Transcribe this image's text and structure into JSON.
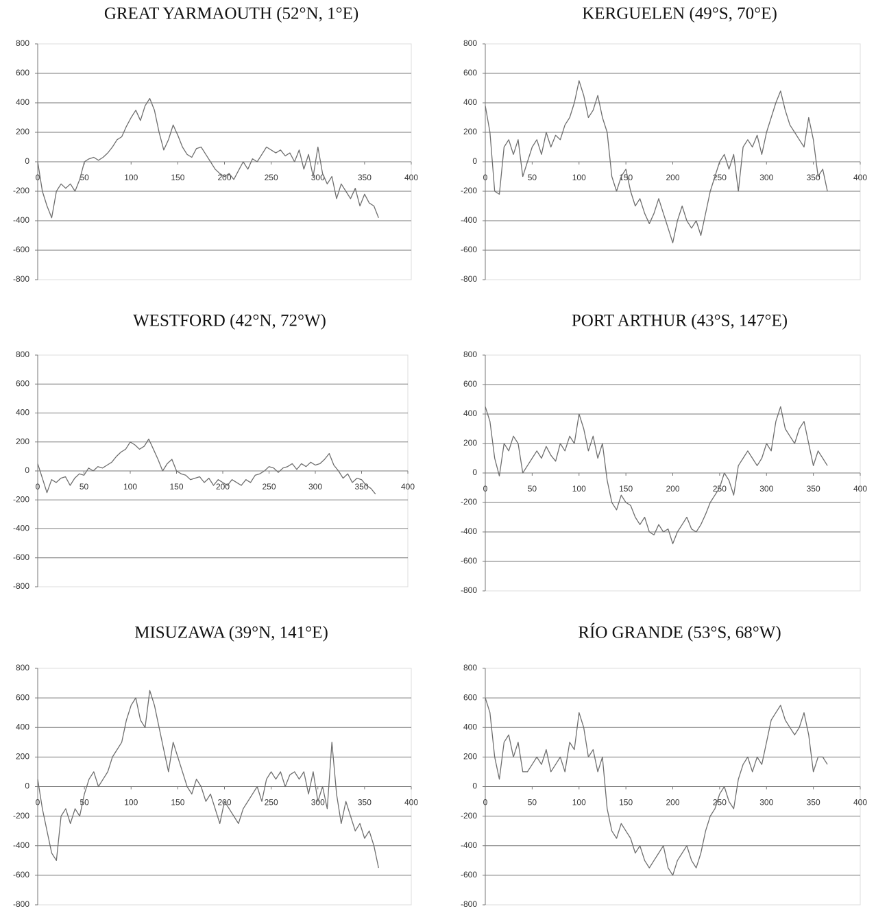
{
  "chart_data": [
    {
      "type": "line",
      "title": "GREAT YARMAOUTH (52°N, 1°E)",
      "color": "#6e6e6e",
      "grid": true,
      "xlim": [
        0,
        400
      ],
      "xticks": [
        0,
        50,
        100,
        150,
        200,
        250,
        300,
        350,
        400
      ],
      "ylim": [
        -800,
        800
      ],
      "yticks": [
        -800,
        -600,
        -400,
        -200,
        0,
        200,
        400,
        600,
        800
      ],
      "x": [
        0,
        5,
        10,
        15,
        20,
        25,
        30,
        35,
        40,
        45,
        50,
        55,
        60,
        65,
        70,
        75,
        80,
        85,
        90,
        95,
        100,
        105,
        110,
        115,
        120,
        125,
        130,
        135,
        140,
        145,
        150,
        155,
        160,
        165,
        170,
        175,
        180,
        185,
        190,
        195,
        200,
        205,
        210,
        215,
        220,
        225,
        230,
        235,
        240,
        245,
        250,
        255,
        260,
        265,
        270,
        275,
        280,
        285,
        290,
        295,
        300,
        305,
        310,
        315,
        320,
        325,
        330,
        335,
        340,
        345,
        350,
        355,
        360,
        365
      ],
      "values": [
        0,
        -200,
        -300,
        -380,
        -200,
        -150,
        -180,
        -150,
        -200,
        -120,
        0,
        20,
        30,
        10,
        30,
        60,
        100,
        150,
        170,
        240,
        300,
        350,
        280,
        380,
        430,
        350,
        200,
        80,
        150,
        250,
        180,
        100,
        50,
        30,
        90,
        100,
        50,
        0,
        -50,
        -80,
        -100,
        -80,
        -120,
        -60,
        0,
        -50,
        20,
        0,
        50,
        100,
        80,
        60,
        80,
        40,
        60,
        0,
        80,
        -50,
        50,
        -100,
        100,
        -80,
        -150,
        -100,
        -250,
        -150,
        -200,
        -250,
        -180,
        -300,
        -220,
        -280,
        -300,
        -380
      ]
    },
    {
      "type": "line",
      "title": "KERGUELEN (49°S, 70°E)",
      "color": "#6e6e6e",
      "grid": true,
      "xlim": [
        0,
        400
      ],
      "xticks": [
        0,
        50,
        100,
        150,
        200,
        250,
        300,
        350,
        400
      ],
      "ylim": [
        -800,
        800
      ],
      "yticks": [
        -800,
        -600,
        -400,
        -200,
        0,
        200,
        400,
        600,
        800
      ],
      "x": [
        0,
        5,
        10,
        15,
        20,
        25,
        30,
        35,
        40,
        45,
        50,
        55,
        60,
        65,
        70,
        75,
        80,
        85,
        90,
        95,
        100,
        105,
        110,
        115,
        120,
        125,
        130,
        135,
        140,
        145,
        150,
        155,
        160,
        165,
        170,
        175,
        180,
        185,
        190,
        195,
        200,
        205,
        210,
        215,
        220,
        225,
        230,
        235,
        240,
        245,
        250,
        255,
        260,
        265,
        270,
        275,
        280,
        285,
        290,
        295,
        300,
        305,
        310,
        315,
        320,
        325,
        330,
        335,
        340,
        345,
        350,
        355,
        360,
        365
      ],
      "values": [
        380,
        200,
        -200,
        -220,
        100,
        150,
        50,
        150,
        -100,
        0,
        100,
        150,
        50,
        200,
        100,
        180,
        150,
        250,
        300,
        400,
        550,
        450,
        300,
        350,
        450,
        300,
        200,
        -100,
        -200,
        -100,
        -50,
        -200,
        -300,
        -250,
        -350,
        -420,
        -350,
        -250,
        -350,
        -450,
        -550,
        -400,
        -300,
        -400,
        -450,
        -400,
        -500,
        -350,
        -200,
        -100,
        0,
        50,
        -50,
        50,
        -200,
        100,
        150,
        100,
        180,
        50,
        200,
        300,
        400,
        480,
        350,
        250,
        200,
        150,
        100,
        300,
        150,
        -100,
        -50,
        -200
      ]
    },
    {
      "type": "line",
      "title": "WESTFORD (42°N, 72°W)",
      "color": "#6e6e6e",
      "grid": true,
      "xlim": [
        0,
        400
      ],
      "xticks": [
        0,
        50,
        100,
        150,
        200,
        250,
        300,
        350,
        400
      ],
      "ylim": [
        -800,
        800
      ],
      "yticks": [
        -800,
        -600,
        -400,
        -200,
        0,
        200,
        400,
        600,
        800
      ],
      "x": [
        0,
        5,
        10,
        15,
        20,
        25,
        30,
        35,
        40,
        45,
        50,
        55,
        60,
        65,
        70,
        75,
        80,
        85,
        90,
        95,
        100,
        105,
        110,
        115,
        120,
        125,
        130,
        135,
        140,
        145,
        150,
        155,
        160,
        165,
        170,
        175,
        180,
        185,
        190,
        195,
        200,
        205,
        210,
        215,
        220,
        225,
        230,
        235,
        240,
        245,
        250,
        255,
        260,
        265,
        270,
        275,
        280,
        285,
        290,
        295,
        300,
        305,
        310,
        315,
        320,
        325,
        330,
        335,
        340,
        345,
        350,
        355,
        360,
        365
      ],
      "values": [
        50,
        -50,
        -150,
        -60,
        -80,
        -50,
        -40,
        -100,
        -50,
        -20,
        -30,
        20,
        0,
        30,
        20,
        40,
        60,
        100,
        130,
        150,
        200,
        180,
        150,
        170,
        220,
        150,
        80,
        0,
        50,
        80,
        0,
        -20,
        -30,
        -60,
        -50,
        -40,
        -80,
        -50,
        -100,
        -60,
        -80,
        -100,
        -60,
        -80,
        -100,
        -60,
        -80,
        -30,
        -20,
        0,
        30,
        20,
        -10,
        20,
        30,
        50,
        10,
        50,
        30,
        60,
        40,
        50,
        80,
        120,
        40,
        0,
        -50,
        -20,
        -80,
        -50,
        -60,
        -100,
        -120,
        -160
      ]
    },
    {
      "type": "line",
      "title": "PORT ARTHUR (43°S, 147°E)",
      "color": "#6e6e6e",
      "grid": true,
      "xlim": [
        0,
        400
      ],
      "xticks": [
        0,
        50,
        100,
        150,
        200,
        250,
        300,
        350,
        400
      ],
      "ylim": [
        -800,
        800
      ],
      "yticks": [
        -800,
        -600,
        -400,
        -200,
        0,
        200,
        400,
        600,
        800
      ],
      "x": [
        0,
        5,
        10,
        15,
        20,
        25,
        30,
        35,
        40,
        45,
        50,
        55,
        60,
        65,
        70,
        75,
        80,
        85,
        90,
        95,
        100,
        105,
        110,
        115,
        120,
        125,
        130,
        135,
        140,
        145,
        150,
        155,
        160,
        165,
        170,
        175,
        180,
        185,
        190,
        195,
        200,
        205,
        210,
        215,
        220,
        225,
        230,
        235,
        240,
        245,
        250,
        255,
        260,
        265,
        270,
        275,
        280,
        285,
        290,
        295,
        300,
        305,
        310,
        315,
        320,
        325,
        330,
        335,
        340,
        345,
        350,
        355,
        360,
        365
      ],
      "values": [
        450,
        350,
        100,
        -20,
        200,
        150,
        250,
        200,
        0,
        50,
        100,
        150,
        100,
        180,
        120,
        80,
        200,
        150,
        250,
        200,
        400,
        300,
        150,
        250,
        100,
        200,
        -50,
        -200,
        -250,
        -150,
        -200,
        -220,
        -300,
        -350,
        -300,
        -400,
        -420,
        -350,
        -400,
        -380,
        -480,
        -400,
        -350,
        -300,
        -380,
        -400,
        -350,
        -280,
        -200,
        -150,
        -100,
        0,
        -50,
        -150,
        50,
        100,
        150,
        100,
        50,
        100,
        200,
        150,
        350,
        450,
        300,
        250,
        200,
        300,
        350,
        200,
        50,
        150,
        100,
        50
      ]
    },
    {
      "type": "line",
      "title": "MISUZAWA (39°N, 141°E)",
      "color": "#6e6e6e",
      "grid": true,
      "xlim": [
        0,
        400
      ],
      "xticks": [
        0,
        50,
        100,
        150,
        200,
        250,
        300,
        350,
        400
      ],
      "ylim": [
        -800,
        800
      ],
      "yticks": [
        -800,
        -600,
        -400,
        -200,
        0,
        200,
        400,
        600,
        800
      ],
      "x": [
        0,
        5,
        10,
        15,
        20,
        25,
        30,
        35,
        40,
        45,
        50,
        55,
        60,
        65,
        70,
        75,
        80,
        85,
        90,
        95,
        100,
        105,
        110,
        115,
        120,
        125,
        130,
        135,
        140,
        145,
        150,
        155,
        160,
        165,
        170,
        175,
        180,
        185,
        190,
        195,
        200,
        205,
        210,
        215,
        220,
        225,
        230,
        235,
        240,
        245,
        250,
        255,
        260,
        265,
        270,
        275,
        280,
        285,
        290,
        295,
        300,
        305,
        310,
        315,
        320,
        325,
        330,
        335,
        340,
        345,
        350,
        355,
        360,
        365
      ],
      "values": [
        50,
        -150,
        -300,
        -450,
        -500,
        -200,
        -150,
        -250,
        -150,
        -200,
        -50,
        50,
        100,
        0,
        50,
        100,
        200,
        250,
        300,
        450,
        550,
        600,
        450,
        400,
        650,
        550,
        400,
        250,
        100,
        300,
        200,
        100,
        0,
        -50,
        50,
        0,
        -100,
        -50,
        -150,
        -250,
        -100,
        -150,
        -200,
        -250,
        -150,
        -100,
        -50,
        0,
        -100,
        50,
        100,
        50,
        100,
        0,
        80,
        100,
        50,
        100,
        -50,
        100,
        -100,
        0,
        -150,
        300,
        -50,
        -250,
        -100,
        -200,
        -300,
        -250,
        -350,
        -300,
        -400,
        -550
      ]
    },
    {
      "type": "line",
      "title": "RÍO GRANDE (53°S, 68°W)",
      "color": "#6e6e6e",
      "grid": true,
      "xlim": [
        0,
        400
      ],
      "xticks": [
        0,
        50,
        100,
        150,
        200,
        250,
        300,
        350,
        400
      ],
      "ylim": [
        -800,
        800
      ],
      "yticks": [
        -800,
        -600,
        -400,
        -200,
        0,
        200,
        400,
        600,
        800
      ],
      "x": [
        0,
        5,
        10,
        15,
        20,
        25,
        30,
        35,
        40,
        45,
        50,
        55,
        60,
        65,
        70,
        75,
        80,
        85,
        90,
        95,
        100,
        105,
        110,
        115,
        120,
        125,
        130,
        135,
        140,
        145,
        150,
        155,
        160,
        165,
        170,
        175,
        180,
        185,
        190,
        195,
        200,
        205,
        210,
        215,
        220,
        225,
        230,
        235,
        240,
        245,
        250,
        255,
        260,
        265,
        270,
        275,
        280,
        285,
        290,
        295,
        300,
        305,
        310,
        315,
        320,
        325,
        330,
        335,
        340,
        345,
        350,
        355,
        360,
        365
      ],
      "values": [
        600,
        500,
        200,
        50,
        300,
        350,
        200,
        300,
        100,
        100,
        150,
        200,
        150,
        250,
        100,
        150,
        200,
        100,
        300,
        250,
        500,
        400,
        200,
        250,
        100,
        200,
        -150,
        -300,
        -350,
        -250,
        -300,
        -350,
        -450,
        -400,
        -500,
        -550,
        -500,
        -450,
        -400,
        -550,
        -600,
        -500,
        -450,
        -400,
        -500,
        -550,
        -450,
        -300,
        -200,
        -150,
        -50,
        0,
        -100,
        -150,
        50,
        150,
        200,
        100,
        200,
        150,
        300,
        450,
        500,
        550,
        450,
        400,
        350,
        400,
        500,
        350,
        100,
        200,
        200,
        150
      ]
    }
  ]
}
